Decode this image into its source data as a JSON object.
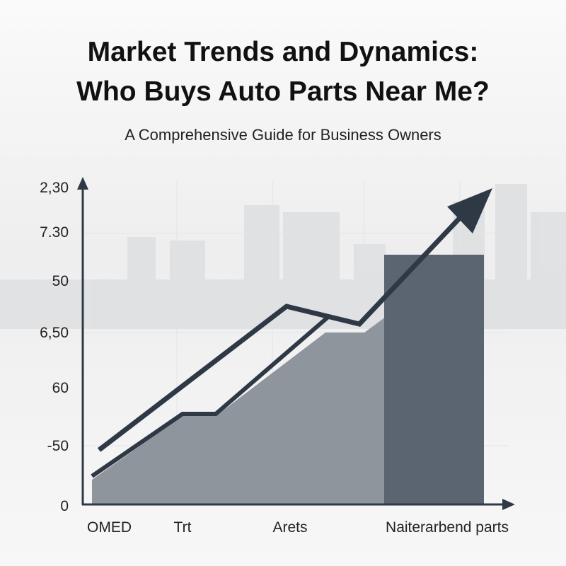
{
  "header": {
    "title_line1": "Market Trends and Dynamics:",
    "title_line2": "Who Buys Auto Parts Near Me?",
    "subtitle": "A Comprehensive Guide for Business Owners"
  },
  "axis": {
    "y_labels": [
      "2,30",
      "7.30",
      "50",
      "6,50",
      "60",
      "-50",
      "0"
    ],
    "x_labels": [
      "OMED",
      "Trt",
      "Arets",
      "Naiterarbend parts"
    ]
  }
}
